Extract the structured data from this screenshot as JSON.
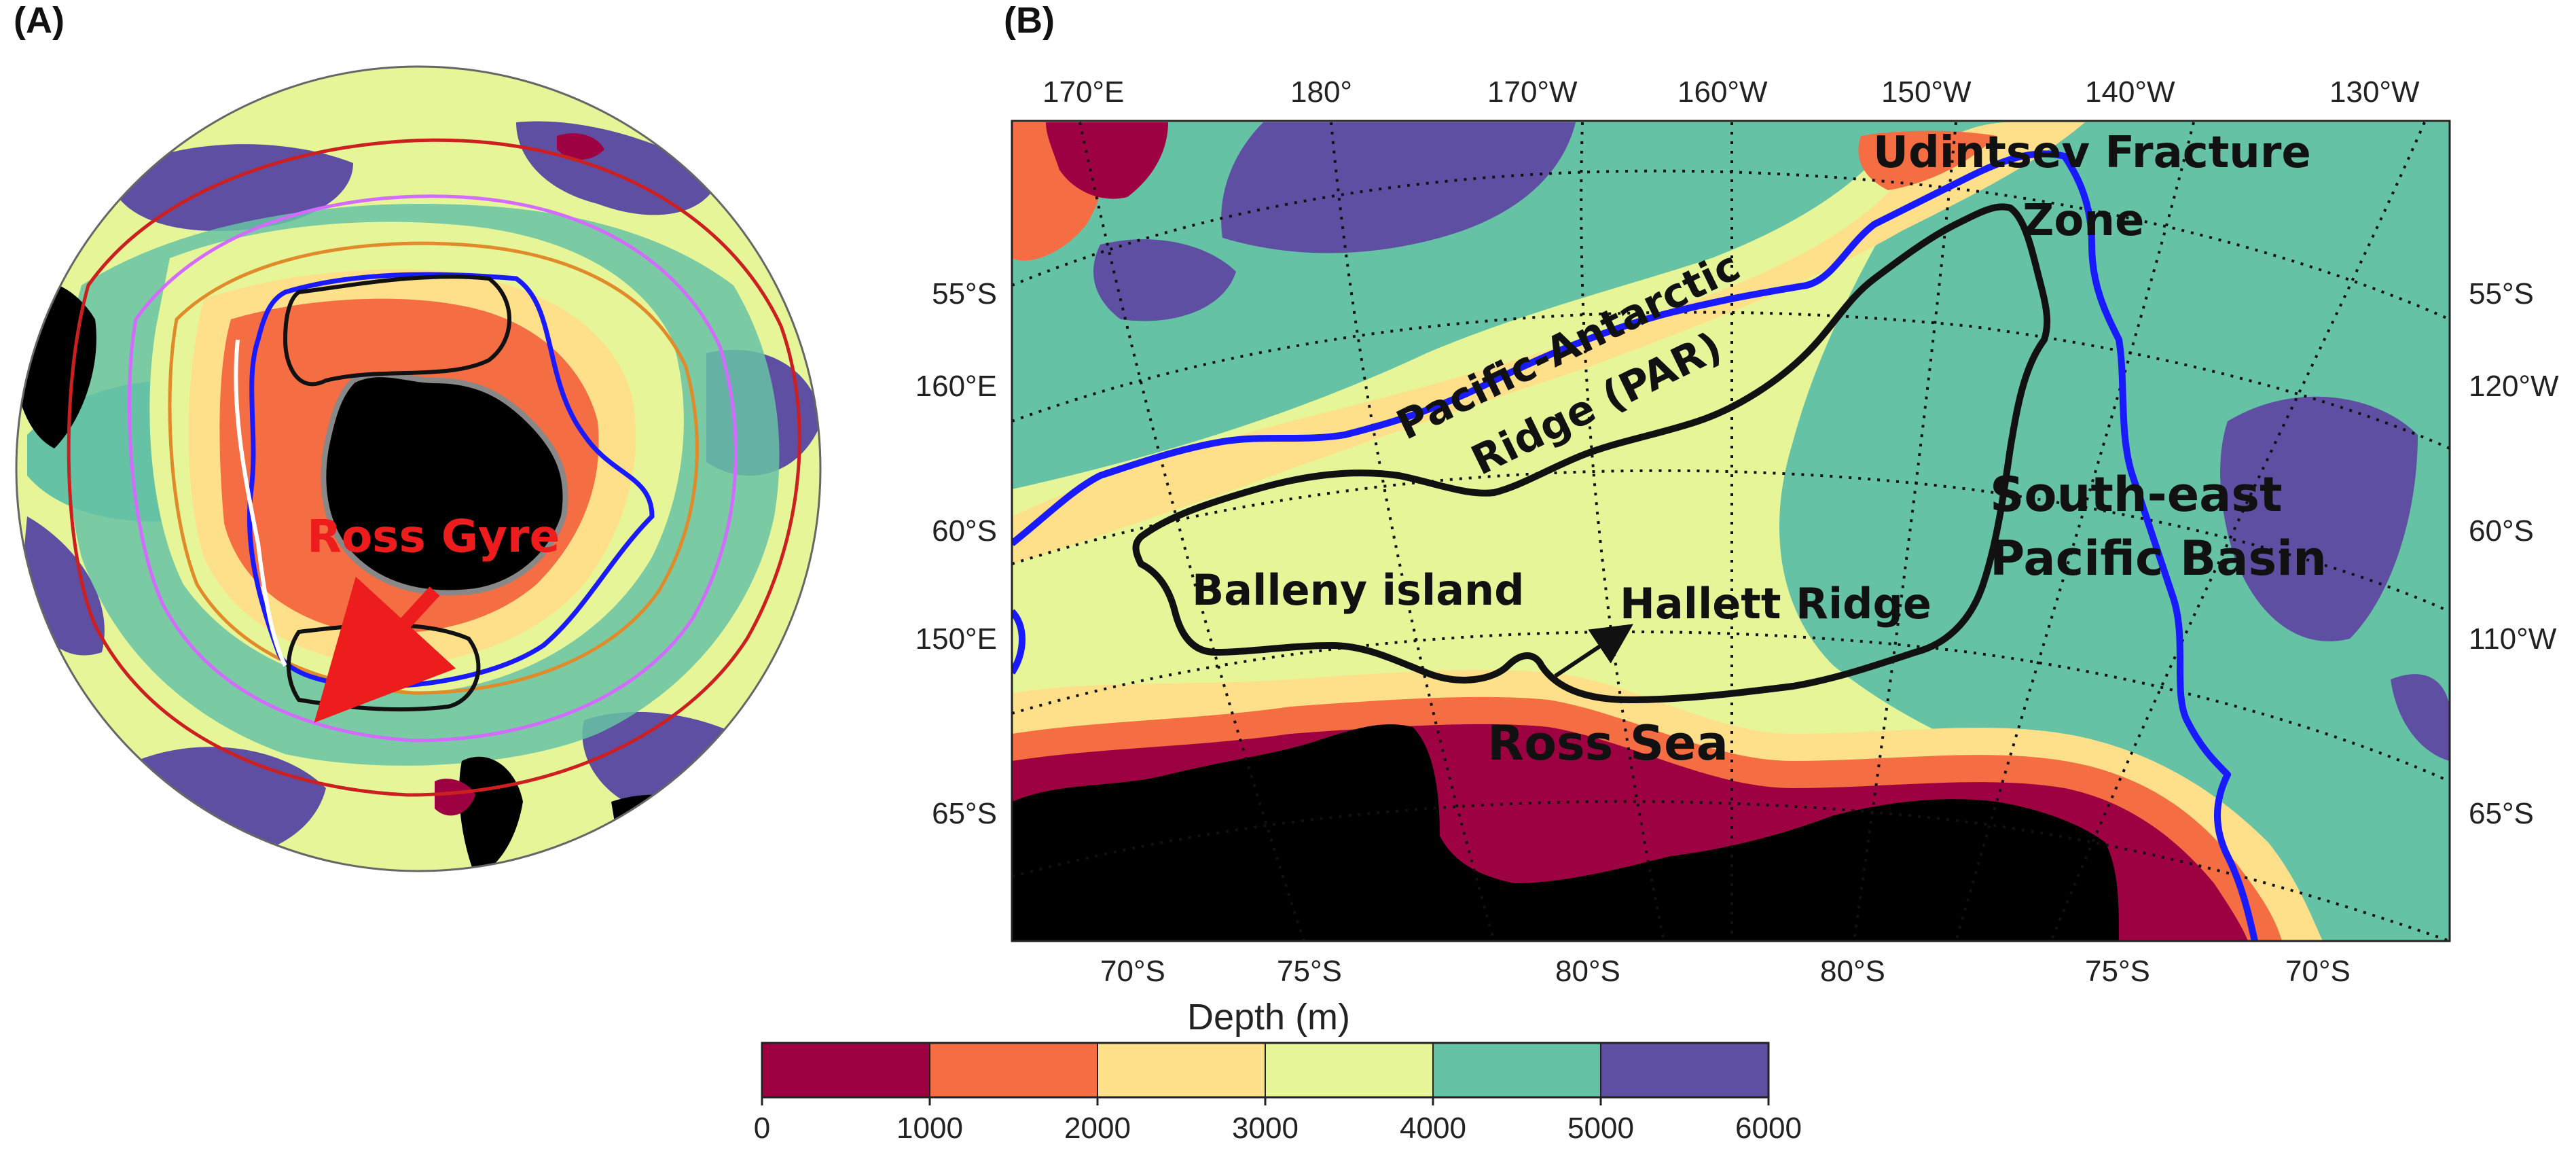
{
  "panels": {
    "a_label": "(A)",
    "b_label": "(B)"
  },
  "panel_a": {
    "annotation": "Ross Gyre"
  },
  "panel_b": {
    "top_lon_labels": [
      "170°E",
      "180°",
      "170°W",
      "160°W",
      "150°W",
      "140°W",
      "130°W"
    ],
    "bottom_lat_labels": [
      "70°S",
      "75°S",
      "80°S",
      "80°S",
      "75°S",
      "70°S"
    ],
    "left_labels": [
      "55°S",
      "160°E",
      "60°S",
      "150°E",
      "65°S"
    ],
    "right_labels": [
      "55°S",
      "120°W",
      "60°S",
      "110°W",
      "65°S"
    ],
    "annotations": {
      "udintsev_line1": "Udintsev Fracture",
      "udintsev_line2": "Zone",
      "par_line1": "Pacific-Antarctic",
      "par_line2": "Ridge (PAR)",
      "south_east_line1": "South-east",
      "south_east_line2": "Pacific Basin",
      "balleny": "Balleny island",
      "hallett": "Hallett Ridge",
      "ross_sea": "Ross Sea"
    }
  },
  "colorbar": {
    "title": "Depth (m)",
    "ticks": [
      "0",
      "1000",
      "2000",
      "3000",
      "4000",
      "5000",
      "6000"
    ],
    "bins": [
      {
        "range": [
          0,
          1000
        ],
        "color": "#9e0142"
      },
      {
        "range": [
          1000,
          2000
        ],
        "color": "#f46d43"
      },
      {
        "range": [
          2000,
          3000
        ],
        "color": "#fee08b"
      },
      {
        "range": [
          3000,
          4000
        ],
        "color": "#e6f598"
      },
      {
        "range": [
          4000,
          5000
        ],
        "color": "#66c2a5"
      },
      {
        "range": [
          5000,
          6000
        ],
        "color": "#5e4fa2"
      }
    ]
  },
  "colors": {
    "land": "#000000",
    "ridge_line": "#1a1aff",
    "gyre_contour": "#111111",
    "arrow_red": "#ee1d1d"
  }
}
